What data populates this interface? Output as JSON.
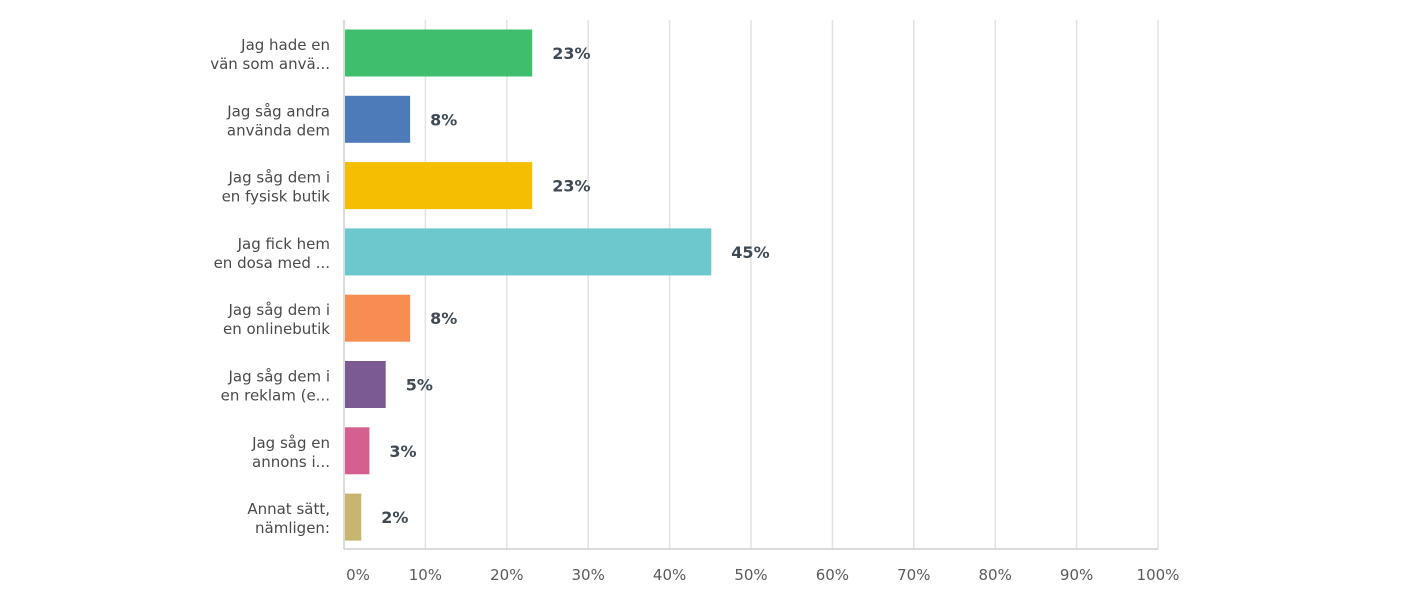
{
  "chart_data": {
    "type": "bar",
    "orientation": "horizontal",
    "categories": [
      [
        "Jag hade en",
        "vän som anvä..."
      ],
      [
        "Jag såg andra",
        "använda dem"
      ],
      [
        "Jag såg dem i",
        "en fysisk butik"
      ],
      [
        "Jag fick hem",
        "en dosa med ..."
      ],
      [
        "Jag såg dem i",
        "en onlinebutik"
      ],
      [
        "Jag såg dem i",
        "en reklam (e..."
      ],
      [
        "Jag såg en",
        "annons i..."
      ],
      [
        "Annat sätt,",
        "nämligen:"
      ]
    ],
    "values": [
      23,
      8,
      23,
      45,
      8,
      5,
      3,
      2
    ],
    "value_labels": [
      "23%",
      "8%",
      "23%",
      "45%",
      "8%",
      "5%",
      "3%",
      "2%"
    ],
    "colors": [
      "#3fbf6e",
      "#4d7ab8",
      "#f6be00",
      "#6cc8cc",
      "#f88d54",
      "#7b5a93",
      "#d5608f",
      "#c8b56f"
    ],
    "xlim": [
      0,
      100
    ],
    "xticks": [
      "0%",
      "10%",
      "20%",
      "30%",
      "40%",
      "50%",
      "60%",
      "70%",
      "80%",
      "90%",
      "100%"
    ],
    "grid": true,
    "title": "",
    "xlabel": "",
    "ylabel": ""
  }
}
